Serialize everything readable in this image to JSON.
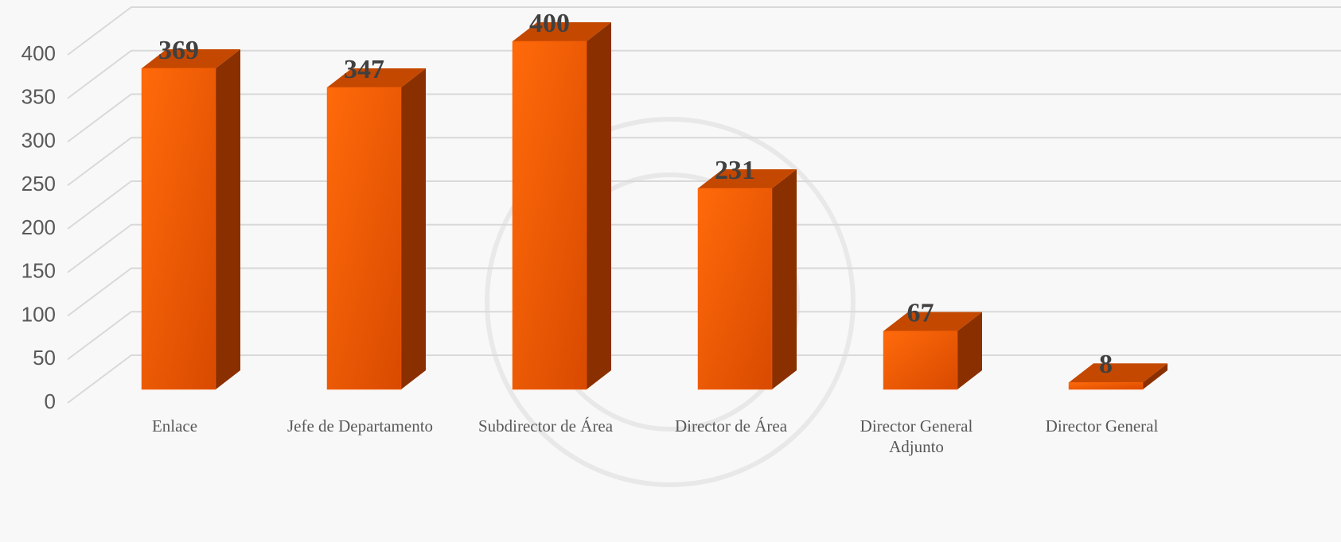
{
  "chart_data": {
    "type": "bar3d",
    "categories": [
      "Enlace",
      "Jefe de Departamento",
      "Subdirector de Área",
      "Director de Área",
      "Director General Adjunto",
      "Director General"
    ],
    "values": [
      369,
      347,
      400,
      231,
      67,
      8
    ],
    "color": "#ff6000",
    "ylim": [
      0,
      400
    ],
    "yticks": [
      0,
      50,
      100,
      150,
      200,
      250,
      300,
      350,
      400
    ],
    "grid": true
  }
}
